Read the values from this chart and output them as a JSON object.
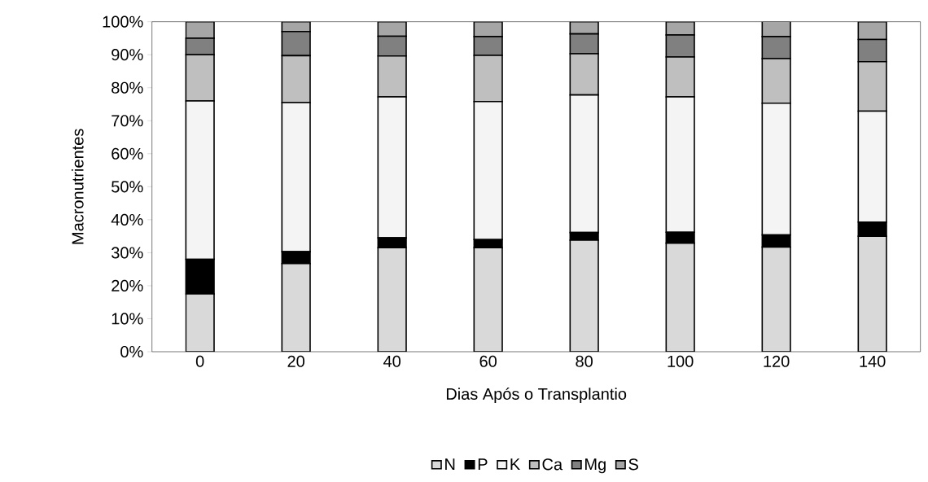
{
  "chart_data": {
    "type": "bar",
    "stacked": true,
    "xlabel": "Dias Após o Transplantio",
    "ylabel": "Macronutrientes",
    "categories": [
      "0",
      "20",
      "40",
      "60",
      "80",
      "100",
      "120",
      "140"
    ],
    "series": [
      {
        "name": "N",
        "color": "#d9d9d9",
        "values": [
          17.5,
          26.7,
          31.5,
          31.5,
          33.8,
          32.9,
          31.7,
          35
        ]
      },
      {
        "name": "P",
        "color": "#000000",
        "values": [
          10.5,
          3.6,
          3,
          2.5,
          2.3,
          3.3,
          3.7,
          4.3
        ]
      },
      {
        "name": "K",
        "color": "#f4f4f4",
        "values": [
          48,
          45.2,
          42.7,
          41.8,
          41.7,
          41,
          39.9,
          33.6
        ]
      },
      {
        "name": "Ca",
        "color": "#bfbfbf",
        "values": [
          14,
          14.2,
          12.4,
          14,
          12.5,
          12.1,
          13.5,
          15
        ]
      },
      {
        "name": "Mg",
        "color": "#808080",
        "values": [
          5,
          7.3,
          6,
          5.7,
          6,
          6.7,
          6.7,
          6.7
        ]
      },
      {
        "name": "S",
        "color": "#a6a6a6",
        "values": [
          5,
          3,
          4.4,
          4.5,
          3.7,
          4,
          4.6,
          5.4
        ]
      }
    ],
    "ylim": [
      0,
      100
    ],
    "yticks": [
      {
        "value": 0,
        "label": "0%"
      },
      {
        "value": 10,
        "label": "10%"
      },
      {
        "value": 20,
        "label": "20%"
      },
      {
        "value": 30,
        "label": "30%"
      },
      {
        "value": 40,
        "label": "40%"
      },
      {
        "value": 50,
        "label": "50%"
      },
      {
        "value": 60,
        "label": "60%"
      },
      {
        "value": 70,
        "label": "70%"
      },
      {
        "value": 80,
        "label": "80%"
      },
      {
        "value": 90,
        "label": "90%"
      },
      {
        "value": 100,
        "label": "100%"
      }
    ],
    "grid": false,
    "legend": "bottom"
  }
}
